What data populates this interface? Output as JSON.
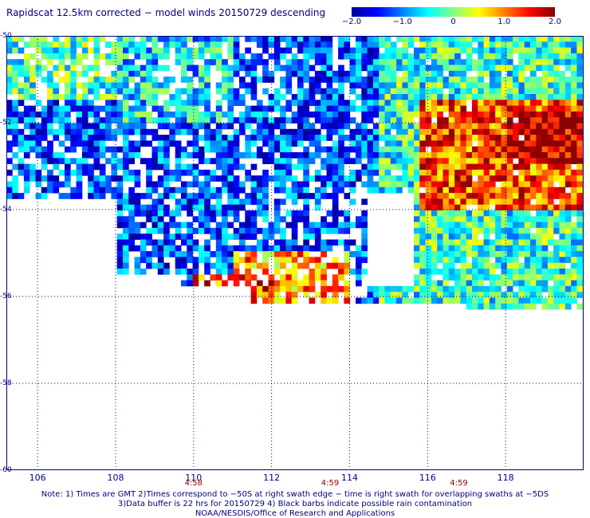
{
  "title": "Rapidscat 12.5km corrected − model winds 20150729 descending",
  "colorbar": {
    "ticks": [
      "−2.0",
      "−1.0",
      "0",
      "1.0",
      "2.0"
    ],
    "tick_values": [
      -2.0,
      -1.0,
      0,
      1.0,
      2.0
    ],
    "range": [
      -2.0,
      2.0
    ],
    "colors": [
      "#0000a0",
      "#0000ff",
      "#0080ff",
      "#00ffff",
      "#80ff80",
      "#ffff00",
      "#ff8000",
      "#ff0000",
      "#8b0000"
    ]
  },
  "map": {
    "lat_range": [
      -60,
      -50
    ],
    "lon_range": [
      105.2,
      120
    ],
    "lat_ticks": [
      "-50",
      "-52",
      "-54",
      "-56",
      "-58",
      "-60"
    ],
    "lat_values": [
      -50,
      -52,
      -54,
      -56,
      -58,
      -60
    ],
    "lon_ticks": [
      "106",
      "108",
      "110",
      "112",
      "114",
      "116",
      "118"
    ],
    "lon_values": [
      106,
      108,
      110,
      112,
      114,
      116,
      118
    ],
    "grid": "dotted",
    "colors": {
      "background": "#ffffff",
      "axis": "#000080",
      "gridline": "#000080"
    },
    "swath_times": [
      {
        "label": "4:58",
        "lon": 110.0
      },
      {
        "label": "4:59",
        "lon": 113.5
      },
      {
        "label": "4:59",
        "lon": 116.8
      }
    ]
  },
  "notes": [
    "Note: 1) Times are GMT 2)Times correspond to −50S at right swath edge − time is right swath for overlapping swaths at −5DS",
    "3)Data buffer is 22 hrs for 20150729 4) Black barbs indicate possible rain contamination",
    "NOAA/NESDIS/Office of Research and Applications"
  ]
}
